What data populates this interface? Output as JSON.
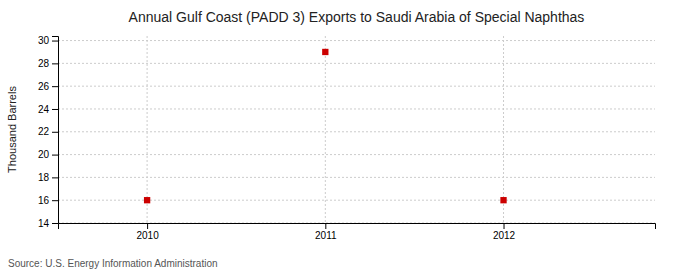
{
  "chart_data": {
    "type": "scatter",
    "title": "Annual Gulf Coast (PADD 3) Exports to Saudi Arabia of Special Naphthas",
    "ylabel": "Thousand Barrels",
    "source": "Source: U.S. Energy Information Administration",
    "x": [
      2010,
      2011,
      2012
    ],
    "values": [
      16,
      29,
      16
    ],
    "color": "#cc0000",
    "marker": "square",
    "xlim": [
      2009.5,
      2012.85
    ],
    "ylim": [
      14,
      30.4
    ],
    "xticks": [
      2010,
      2011,
      2012
    ],
    "yticks": [
      14,
      16,
      18,
      20,
      22,
      24,
      26,
      28,
      30
    ],
    "grid": true
  }
}
